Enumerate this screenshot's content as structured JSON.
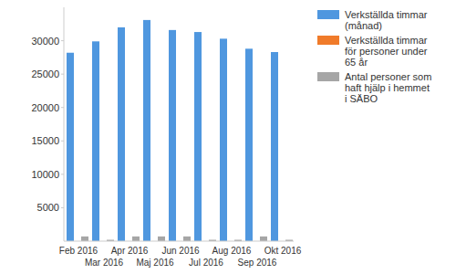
{
  "chart_data": {
    "type": "bar",
    "categories": [
      "Feb 2016",
      "Mar 2016",
      "Apr 2016",
      "Maj 2016",
      "Jun 2016",
      "Jul 2016",
      "Aug 2016",
      "Sep 2016",
      "Okt 2016"
    ],
    "series": [
      {
        "name": "Verkställda timmar (månad)",
        "color": "#4f97df",
        "values": [
          28200,
          29900,
          32000,
          33100,
          31600,
          31300,
          30300,
          28800,
          28300
        ]
      },
      {
        "name": "Verkställda timmar för personer under 65 år",
        "color": "#f07b2a",
        "values": [
          0,
          0,
          0,
          0,
          0,
          0,
          0,
          0,
          0
        ]
      },
      {
        "name": "Antal personer som haft hjälp i hemmet i SÄBO",
        "color": "#a6a6a6",
        "values": [
          700,
          200,
          700,
          700,
          700,
          200,
          200,
          700,
          200
        ]
      }
    ],
    "ylim": [
      0,
      35000
    ],
    "yticks": [
      5000,
      10000,
      15000,
      20000,
      25000,
      30000
    ],
    "grid": false,
    "legend": "right"
  }
}
